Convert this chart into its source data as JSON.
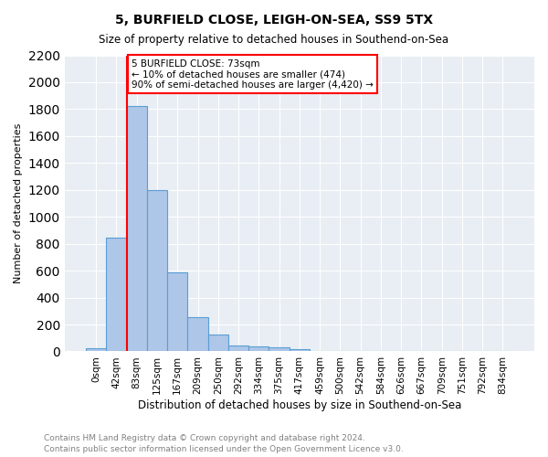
{
  "title1": "5, BURFIELD CLOSE, LEIGH-ON-SEA, SS9 5TX",
  "title2": "Size of property relative to detached houses in Southend-on-Sea",
  "xlabel": "Distribution of detached houses by size in Southend-on-Sea",
  "ylabel": "Number of detached properties",
  "footnote1": "Contains HM Land Registry data © Crown copyright and database right 2024.",
  "footnote2": "Contains public sector information licensed under the Open Government Licence v3.0.",
  "bin_labels": [
    "0sqm",
    "42sqm",
    "83sqm",
    "125sqm",
    "167sqm",
    "209sqm",
    "250sqm",
    "292sqm",
    "334sqm",
    "375sqm",
    "417sqm",
    "459sqm",
    "500sqm",
    "542sqm",
    "584sqm",
    "626sqm",
    "667sqm",
    "709sqm",
    "751sqm",
    "792sqm",
    "834sqm"
  ],
  "bar_heights": [
    25,
    845,
    1820,
    1200,
    590,
    255,
    125,
    45,
    40,
    30,
    18,
    0,
    0,
    0,
    0,
    0,
    0,
    0,
    0,
    0,
    0
  ],
  "bar_color": "#aec6e8",
  "bar_edge_color": "#5a9fd4",
  "red_line_bin_index": 2,
  "annotation_text": "5 BURFIELD CLOSE: 73sqm\n← 10% of detached houses are smaller (474)\n90% of semi-detached houses are larger (4,420) →",
  "annotation_box_color": "white",
  "annotation_box_edge": "red",
  "ylim": [
    0,
    2200
  ],
  "yticks": [
    0,
    200,
    400,
    600,
    800,
    1000,
    1200,
    1400,
    1600,
    1800,
    2000,
    2200
  ],
  "plot_bg_color": "#e8eef4"
}
